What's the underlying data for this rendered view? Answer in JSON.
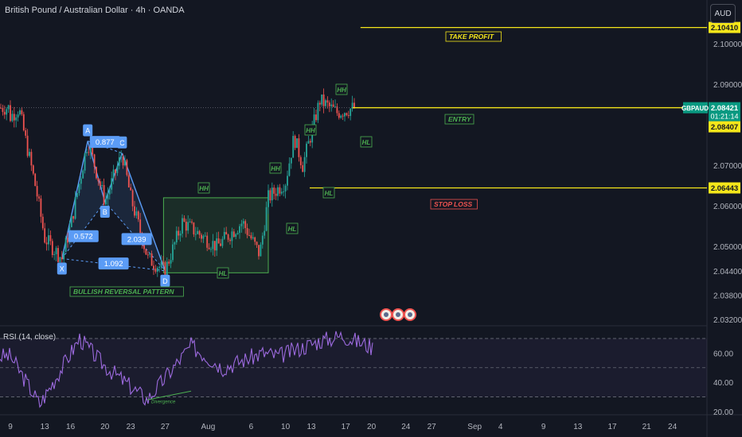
{
  "header": {
    "symbol_title": "British Pound / Australian Dollar · 4h · OANDA",
    "currency": "AUD"
  },
  "colors": {
    "background": "#131722",
    "up": "#26a69a",
    "down": "#ef5350",
    "level": "#f5e61a",
    "pattern": "#5b9cf6",
    "box": "#4caf50",
    "rsi": "#9c6ade"
  },
  "chart_data": {
    "type": "candlestick",
    "title": "British Pound / Australian Dollar · 4h · OANDA",
    "price_axis": {
      "labels": [
        "2.10000",
        "2.09000",
        "2.07000",
        "2.06000",
        "2.05000",
        "2.04400",
        "2.03800",
        "2.03200"
      ],
      "values": [
        2.1,
        2.09,
        2.07,
        2.06,
        2.05,
        2.044,
        2.038,
        2.032
      ]
    },
    "time_axis": [
      "9",
      "13",
      "16",
      "20",
      "23",
      "27",
      "Aug",
      "6",
      "10",
      "13",
      "17",
      "20",
      "24",
      "27",
      "Sep",
      "4",
      "9",
      "13",
      "17",
      "21",
      "24"
    ],
    "price_anchors": [
      {
        "t": "Jul 9",
        "p": 2.082
      },
      {
        "t": "Jul 10",
        "p": 2.084
      },
      {
        "t": "Jul 12",
        "p": 2.064
      },
      {
        "t": "Jul 13",
        "p": 2.052
      },
      {
        "t": "Jul 15",
        "p": 2.047
      },
      {
        "t": "Jul 16",
        "p": 2.055
      },
      {
        "t": "Jul 18",
        "p": 2.076
      },
      {
        "t": "Jul 20",
        "p": 2.061
      },
      {
        "t": "Jul 22",
        "p": 2.073
      },
      {
        "t": "Jul 23",
        "p": 2.062
      },
      {
        "t": "Jul 25",
        "p": 2.047
      },
      {
        "t": "Jul 27",
        "p": 2.044
      },
      {
        "t": "Jul 29",
        "p": 2.056
      },
      {
        "t": "Aug 2",
        "p": 2.05
      },
      {
        "t": "Aug 5",
        "p": 2.056
      },
      {
        "t": "Aug 7",
        "p": 2.048
      },
      {
        "t": "Aug 8",
        "p": 2.062
      },
      {
        "t": "Aug 10",
        "p": 2.066
      },
      {
        "t": "Aug 11",
        "p": 2.077
      },
      {
        "t": "Aug 12",
        "p": 2.07
      },
      {
        "t": "Aug 14",
        "p": 2.086
      },
      {
        "t": "Aug 16",
        "p": 2.083
      },
      {
        "t": "Aug 18",
        "p": 2.0842
      }
    ],
    "harmonic_pattern": {
      "points": [
        {
          "label": "X",
          "t": "Jul 15",
          "p": 2.047
        },
        {
          "label": "A",
          "t": "Jul 18",
          "p": 2.076
        },
        {
          "label": "B",
          "t": "Jul 20",
          "p": 2.061
        },
        {
          "label": "C",
          "t": "Jul 22",
          "p": 2.073
        },
        {
          "label": "D",
          "t": "Jul 27",
          "p": 2.044
        }
      ],
      "ratios": [
        "0.877",
        "0.572",
        "2.039",
        "1.092"
      ],
      "name": "BULLISH REVERSAL PATTERN"
    },
    "levels": [
      {
        "name": "TAKE PROFIT",
        "p": 2.104,
        "label": "2.10410"
      },
      {
        "name": "ENTRY",
        "p": 2.08421
      },
      {
        "name": "STOP LOSS",
        "p": 2.06443,
        "label": "2.06443"
      }
    ],
    "range_box": {
      "from": "Jul 27",
      "to": "Aug 8",
      "low": 2.0435,
      "high": 2.062
    },
    "structure_labels": [
      "HH",
      "HL",
      "HH",
      "HL",
      "HH",
      "HL",
      "HH",
      "HL"
    ],
    "last_price": {
      "symbol": "GBPAUD",
      "price": "2.08421",
      "countdown": "01:21:14",
      "bid": "2.08407"
    },
    "rsi": {
      "title": "RSI (14, close)",
      "labels": [
        "60.00",
        "40.00",
        "20.00"
      ],
      "levels": [
        70,
        50,
        30
      ],
      "last": 64,
      "divergence_label": "Divergence"
    }
  }
}
